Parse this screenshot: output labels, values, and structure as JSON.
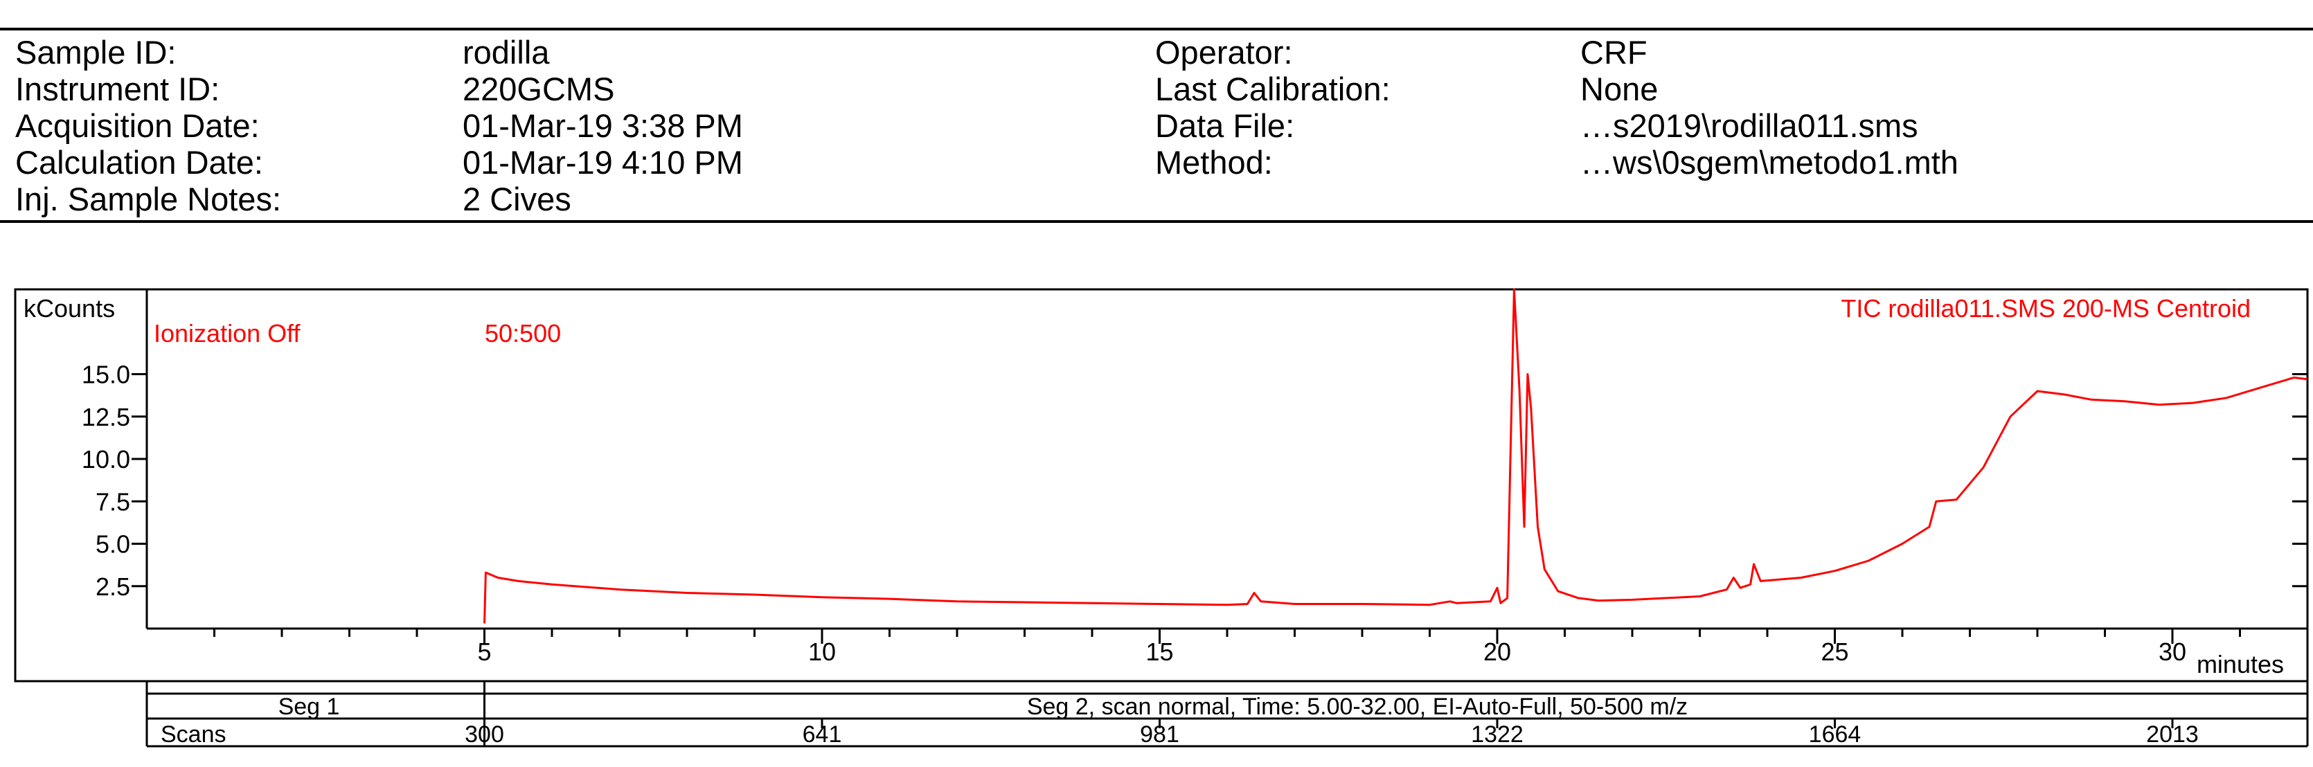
{
  "header": {
    "left": [
      {
        "label": "Sample ID:",
        "value": "rodilla"
      },
      {
        "label": "Instrument ID:",
        "value": "220GCMS"
      },
      {
        "label": "Acquisition Date:",
        "value": "01-Mar-19 3:38 PM"
      },
      {
        "label": "Calculation Date:",
        "value": "01-Mar-19 4:10 PM"
      },
      {
        "label": "Inj. Sample Notes:",
        "value": "2 Cives"
      }
    ],
    "right": [
      {
        "label": "Operator:",
        "value": "CRF"
      },
      {
        "label": "Last Calibration:",
        "value": "None"
      },
      {
        "label": "Data File:",
        "value": "…s2019\\rodilla011.sms"
      },
      {
        "label": "Method:",
        "value": "…ws\\0sgem\\metodo1.mth"
      }
    ]
  },
  "chart_data": {
    "type": "line",
    "title": "TIC rodilla011.SMS 200-MS Centroid",
    "ylabel": "kCounts",
    "xlabel": "minutes",
    "annotations": [
      "Ionization Off",
      "50:500"
    ],
    "xlim": [
      0,
      32
    ],
    "ylim": [
      0,
      20
    ],
    "x_ticks": [
      5,
      10,
      15,
      20,
      25,
      30
    ],
    "x_tick_labels": [
      "5",
      "10",
      "15",
      "20",
      "25",
      "30"
    ],
    "y_ticks": [
      2.5,
      5.0,
      7.5,
      10.0,
      12.5,
      15.0
    ],
    "y_tick_labels": [
      "2.5",
      "5.0",
      "7.5",
      "10.0",
      "12.5",
      "15.0"
    ],
    "series": [
      {
        "name": "TIC",
        "color": "#ff0000",
        "points": [
          [
            5.0,
            0.3
          ],
          [
            5.02,
            3.3
          ],
          [
            5.2,
            3.0
          ],
          [
            5.5,
            2.8
          ],
          [
            6,
            2.6
          ],
          [
            7,
            2.3
          ],
          [
            8,
            2.1
          ],
          [
            9,
            2.0
          ],
          [
            10,
            1.85
          ],
          [
            11,
            1.75
          ],
          [
            12,
            1.6
          ],
          [
            13,
            1.55
          ],
          [
            14,
            1.5
          ],
          [
            15,
            1.45
          ],
          [
            16,
            1.4
          ],
          [
            16.3,
            1.45
          ],
          [
            16.4,
            2.1
          ],
          [
            16.5,
            1.6
          ],
          [
            17,
            1.45
          ],
          [
            18,
            1.45
          ],
          [
            19,
            1.4
          ],
          [
            19.3,
            1.6
          ],
          [
            19.4,
            1.5
          ],
          [
            19.9,
            1.6
          ],
          [
            20.0,
            2.4
          ],
          [
            20.05,
            1.5
          ],
          [
            20.15,
            1.8
          ],
          [
            20.25,
            20.0
          ],
          [
            20.33,
            14.0
          ],
          [
            20.4,
            6.0
          ],
          [
            20.45,
            15.0
          ],
          [
            20.5,
            13.0
          ],
          [
            20.6,
            6.0
          ],
          [
            20.7,
            3.5
          ],
          [
            20.9,
            2.2
          ],
          [
            21.2,
            1.8
          ],
          [
            21.5,
            1.65
          ],
          [
            22,
            1.7
          ],
          [
            23,
            1.9
          ],
          [
            23.4,
            2.3
          ],
          [
            23.5,
            3.0
          ],
          [
            23.6,
            2.4
          ],
          [
            23.75,
            2.6
          ],
          [
            23.8,
            3.8
          ],
          [
            23.9,
            2.8
          ],
          [
            24.5,
            3.0
          ],
          [
            25.0,
            3.4
          ],
          [
            25.5,
            4.0
          ],
          [
            26.0,
            5.0
          ],
          [
            26.4,
            6.0
          ],
          [
            26.5,
            7.5
          ],
          [
            26.8,
            7.6
          ],
          [
            27.2,
            9.5
          ],
          [
            27.6,
            12.5
          ],
          [
            28.0,
            14.0
          ],
          [
            28.4,
            13.8
          ],
          [
            28.8,
            13.5
          ],
          [
            29.3,
            13.4
          ],
          [
            29.8,
            13.2
          ],
          [
            30.3,
            13.3
          ],
          [
            30.8,
            13.6
          ],
          [
            31.3,
            14.2
          ],
          [
            31.8,
            14.8
          ],
          [
            32.0,
            14.7
          ]
        ]
      }
    ],
    "segment_bar": {
      "seg1_label": "Seg 1",
      "seg2_label": "Seg 2, scan normal, Time:  5.00-32.00, EI-Auto-Full, 50-500 m/z",
      "scans_label": "Scans",
      "scan_ticks": [
        {
          "minutes": 5,
          "scan": "300"
        },
        {
          "minutes": 10,
          "scan": "641"
        },
        {
          "minutes": 15,
          "scan": "981"
        },
        {
          "minutes": 20,
          "scan": "1322"
        },
        {
          "minutes": 25,
          "scan": "1664"
        },
        {
          "minutes": 30,
          "scan": "2013"
        }
      ]
    }
  }
}
